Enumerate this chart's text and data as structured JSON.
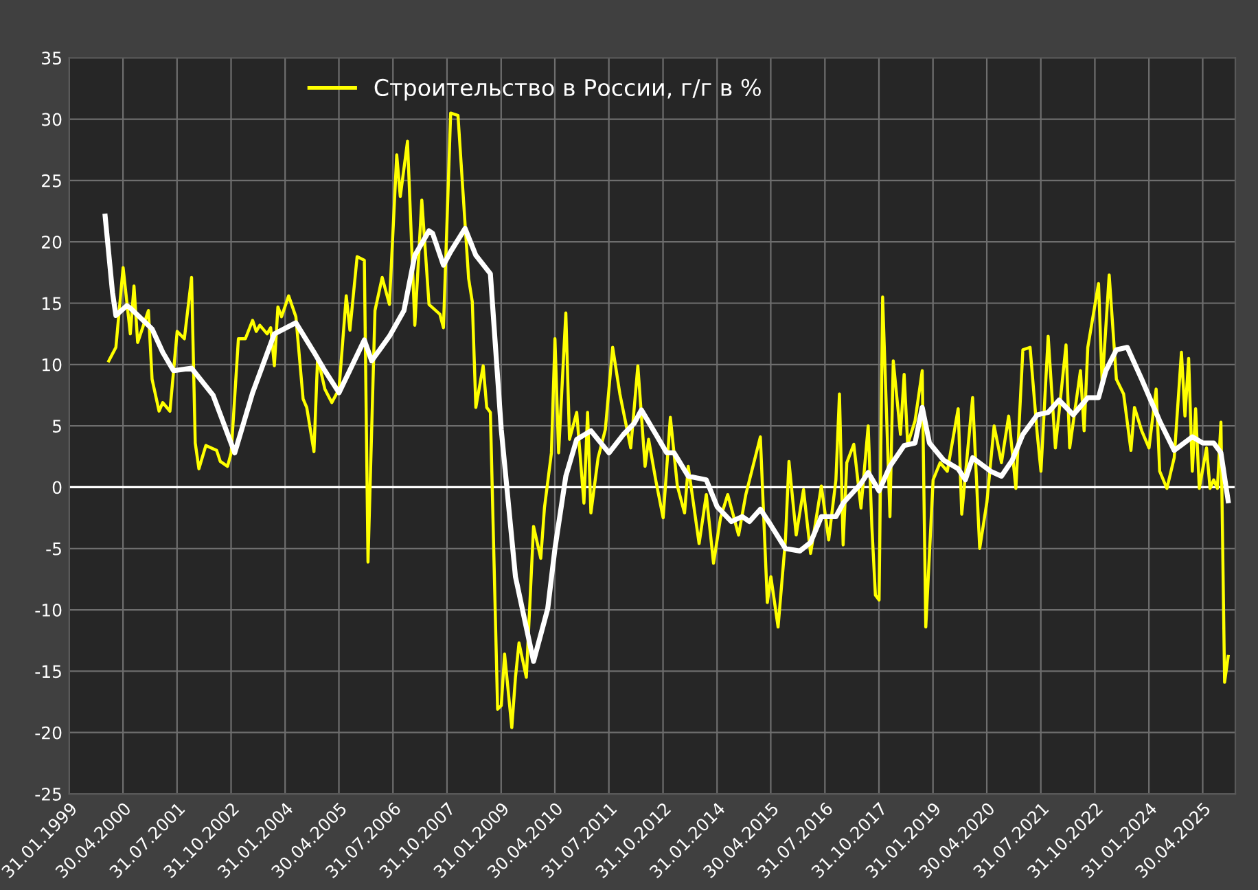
{
  "chart_data": {
    "type": "line",
    "legend": "top",
    "grid": true,
    "line_style": "solid",
    "marker": "none",
    "xlim": [
      "1999-01-31",
      "2026-01-31"
    ],
    "xticks": [
      {
        "value": "1999-01-31",
        "label": "31.01.1999"
      },
      {
        "value": "2000-04-30",
        "label": "30.04.2000"
      },
      {
        "value": "2001-07-31",
        "label": "31.07.2001"
      },
      {
        "value": "2002-10-31",
        "label": "31.10.2002"
      },
      {
        "value": "2004-01-31",
        "label": "31.01.2004"
      },
      {
        "value": "2005-04-30",
        "label": "30.04.2005"
      },
      {
        "value": "2006-07-31",
        "label": "31.07.2006"
      },
      {
        "value": "2007-10-31",
        "label": "31.10.2007"
      },
      {
        "value": "2009-01-31",
        "label": "31.01.2009"
      },
      {
        "value": "2010-04-30",
        "label": "30.04.2010"
      },
      {
        "value": "2011-07-31",
        "label": "31.07.2011"
      },
      {
        "value": "2012-10-31",
        "label": "31.10.2012"
      },
      {
        "value": "2014-01-31",
        "label": "31.01.2014"
      },
      {
        "value": "2015-04-30",
        "label": "30.04.2015"
      },
      {
        "value": "2016-07-31",
        "label": "31.07.2016"
      },
      {
        "value": "2017-10-31",
        "label": "31.10.2017"
      },
      {
        "value": "2019-01-31",
        "label": "31.01.2019"
      },
      {
        "value": "2020-04-30",
        "label": "30.04.2020"
      },
      {
        "value": "2021-07-31",
        "label": "31.07.2021"
      },
      {
        "value": "2022-10-31",
        "label": "31.10.2022"
      },
      {
        "value": "2024-01-31",
        "label": "31.01.2024"
      },
      {
        "value": "2025-04-30",
        "label": "30.04.2025"
      }
    ],
    "ylim": [
      -25,
      35
    ],
    "yticks": [
      -25,
      -20,
      -15,
      -10,
      -5,
      0,
      5,
      10,
      15,
      20,
      25,
      30,
      35
    ],
    "ref_lines": [
      {
        "axis": "y",
        "value": 0,
        "color": "#ffffff"
      }
    ],
    "series": [
      {
        "name": "Строительство в России, г/г в %",
        "color": "#ffff00",
        "x": [
          "2000-01",
          "2000-03",
          "2000-05",
          "2000-07",
          "2000-08",
          "2000-09",
          "2000-12",
          "2001-01",
          "2001-03",
          "2001-04",
          "2001-06",
          "2001-08",
          "2001-10",
          "2001-12",
          "2002-01",
          "2002-02",
          "2002-04",
          "2002-07",
          "2002-08",
          "2002-10",
          "2002-11",
          "2003-01",
          "2003-03",
          "2003-05",
          "2003-06",
          "2003-07",
          "2003-09",
          "2003-10",
          "2003-11",
          "2003-12",
          "2004-01",
          "2004-03",
          "2004-05",
          "2004-07",
          "2004-08",
          "2004-10",
          "2004-11",
          "2005-01",
          "2005-03",
          "2005-05",
          "2005-07",
          "2005-08",
          "2005-10",
          "2005-12",
          "2006-01",
          "2006-03",
          "2006-05",
          "2006-07",
          "2006-09",
          "2006-10",
          "2006-12",
          "2007-02",
          "2007-04",
          "2007-06",
          "2007-09",
          "2007-10",
          "2007-12",
          "2008-02",
          "2008-05",
          "2008-06",
          "2008-07",
          "2008-09",
          "2008-10",
          "2008-11",
          "2009-01",
          "2009-02",
          "2009-03",
          "2009-05",
          "2009-06",
          "2009-07",
          "2009-09",
          "2009-11",
          "2010-01",
          "2010-02",
          "2010-04",
          "2010-05",
          "2010-06",
          "2010-08",
          "2010-09",
          "2010-11",
          "2011-01",
          "2011-02",
          "2011-03",
          "2011-05",
          "2011-07",
          "2011-09",
          "2011-11",
          "2012-02",
          "2012-04",
          "2012-06",
          "2012-07",
          "2012-09",
          "2012-11",
          "2013-01",
          "2013-03",
          "2013-05",
          "2013-06",
          "2013-09",
          "2013-11",
          "2014-01",
          "2014-03",
          "2014-05",
          "2014-08",
          "2014-10",
          "2015-02",
          "2015-04",
          "2015-05",
          "2015-07",
          "2015-09",
          "2015-10",
          "2015-12",
          "2016-02",
          "2016-04",
          "2016-07",
          "2016-09",
          "2016-11",
          "2016-12",
          "2017-01",
          "2017-02",
          "2017-04",
          "2017-06",
          "2017-08",
          "2017-09",
          "2017-10",
          "2017-11",
          "2017-12",
          "2018-02",
          "2018-03",
          "2018-05",
          "2018-06",
          "2018-07",
          "2018-09",
          "2018-11",
          "2018-12",
          "2019-02",
          "2019-04",
          "2019-06",
          "2019-09",
          "2019-10",
          "2020-01",
          "2020-03",
          "2020-05",
          "2020-07",
          "2020-09",
          "2020-11",
          "2021-01",
          "2021-03",
          "2021-05",
          "2021-07",
          "2021-08",
          "2021-10",
          "2021-12",
          "2022-03",
          "2022-04",
          "2022-07",
          "2022-08",
          "2022-09",
          "2022-12",
          "2023-01",
          "2023-03",
          "2023-05",
          "2023-07",
          "2023-09",
          "2023-10",
          "2023-12",
          "2024-02",
          "2024-04",
          "2024-05",
          "2024-07",
          "2024-09",
          "2024-11",
          "2024-12",
          "2025-01",
          "2025-02",
          "2025-03",
          "2025-04",
          "2025-06",
          "2025-07",
          "2025-08",
          "2025-09",
          "2025-10",
          "2025-11",
          "2025-12"
        ],
        "values": [
          10.3,
          11.4,
          17.9,
          12.5,
          16.4,
          11.8,
          14.4,
          8.8,
          6.2,
          6.9,
          6.2,
          12.7,
          12.1,
          17.1,
          3.6,
          1.5,
          3.4,
          3.0,
          2.1,
          1.7,
          2.8,
          12.1,
          12.1,
          13.6,
          12.7,
          13.2,
          12.5,
          13.0,
          9.9,
          14.7,
          13.9,
          15.6,
          13.9,
          7.2,
          6.5,
          2.9,
          10.6,
          8.0,
          6.9,
          8.0,
          15.6,
          12.8,
          18.8,
          18.5,
          -6.1,
          14.4,
          17.1,
          14.9,
          27.1,
          23.7,
          28.2,
          13.2,
          23.4,
          14.9,
          14.1,
          13.0,
          30.5,
          30.3,
          17.0,
          15.1,
          6.5,
          9.9,
          6.5,
          6.1,
          -18.1,
          -17.8,
          -13.6,
          -19.6,
          -15.5,
          -12.7,
          -15.5,
          -3.2,
          -5.8,
          -1.7,
          2.8,
          12.1,
          2.8,
          14.2,
          3.9,
          6.1,
          -1.3,
          6.1,
          -2.1,
          2.4,
          4.7,
          11.4,
          7.6,
          3.2,
          9.9,
          1.7,
          3.9,
          0.5,
          -2.5,
          5.7,
          0.1,
          -2.1,
          1.7,
          -4.6,
          -0.6,
          -6.2,
          -2.5,
          -0.6,
          -3.9,
          -0.6,
          4.1,
          -9.4,
          -7.3,
          -11.4,
          -4.3,
          2.1,
          -3.9,
          -0.2,
          -5.4,
          0.1,
          -4.3,
          0.6,
          7.6,
          -4.7,
          2.0,
          3.5,
          -1.7,
          5.0,
          -3.2,
          -8.8,
          -9.2,
          15.5,
          -2.4,
          10.3,
          4.3,
          9.2,
          3.5,
          5.4,
          9.5,
          -11.4,
          0.6,
          2.0,
          1.3,
          6.4,
          -2.2,
          7.3,
          -5.0,
          -1.2,
          5.0,
          2.0,
          5.8,
          -0.1,
          11.2,
          11.4,
          4.3,
          1.3,
          12.3,
          3.2,
          11.6,
          3.2,
          9.5,
          4.6,
          11.4,
          16.6,
          8.4,
          17.3,
          8.8,
          7.6,
          3.0,
          6.5,
          4.6,
          3.2,
          8.0,
          1.3,
          -0.1,
          2.4,
          11.0,
          5.8,
          10.5,
          1.3,
          6.4,
          -0.1,
          3.2,
          -0.1,
          0.6,
          -0.1,
          5.3,
          -15.9,
          -13.8
        ]
      },
      {
        "color": "#ffffff",
        "x": [
          "1999-12",
          "2000-02",
          "2000-03",
          "2000-06",
          "2000-07",
          "2001-01",
          "2001-04",
          "2001-07",
          "2001-12",
          "2002-06",
          "2002-12",
          "2003-05",
          "2003-11",
          "2004-05",
          "2004-10",
          "2005-01",
          "2005-05",
          "2005-12",
          "2006-02",
          "2006-07",
          "2006-11",
          "2007-02",
          "2007-06",
          "2007-07",
          "2007-10",
          "2007-12",
          "2008-04",
          "2008-07",
          "2008-11",
          "2009-02",
          "2009-06",
          "2009-11",
          "2010-03",
          "2010-05",
          "2010-08",
          "2010-11",
          "2011-03",
          "2011-08",
          "2011-12",
          "2012-03",
          "2012-05",
          "2012-09",
          "2012-12",
          "2013-02",
          "2013-06",
          "2013-11",
          "2014-02",
          "2014-06",
          "2014-09",
          "2014-11",
          "2015-02",
          "2015-05",
          "2015-09",
          "2016-01",
          "2016-04",
          "2016-07",
          "2016-11",
          "2017-01",
          "2017-06",
          "2017-08",
          "2017-11",
          "2018-02",
          "2018-06",
          "2018-09",
          "2018-11",
          "2019-01",
          "2019-05",
          "2019-09",
          "2019-11",
          "2020-01",
          "2020-06",
          "2020-09",
          "2020-12",
          "2021-03",
          "2021-07",
          "2021-10",
          "2022-01",
          "2022-05",
          "2022-09",
          "2022-12",
          "2023-02",
          "2023-05",
          "2023-08",
          "2023-12",
          "2024-05",
          "2024-09",
          "2025-02",
          "2025-05",
          "2025-08",
          "2025-10",
          "2025-12"
        ],
        "values": [
          22.1,
          15.9,
          14.0,
          14.8,
          14.6,
          12.9,
          11.0,
          9.5,
          9.7,
          7.5,
          2.8,
          7.7,
          12.5,
          13.4,
          11.0,
          9.5,
          7.7,
          12.0,
          10.3,
          12.3,
          14.4,
          18.9,
          20.9,
          20.7,
          18.1,
          19.2,
          21.1,
          18.9,
          17.4,
          4.7,
          -7.3,
          -14.2,
          -9.9,
          -5.0,
          0.9,
          3.9,
          4.6,
          2.8,
          4.3,
          5.2,
          6.3,
          4.3,
          2.8,
          2.8,
          0.9,
          0.6,
          -1.6,
          -2.8,
          -2.4,
          -2.8,
          -1.8,
          -3.1,
          -5.0,
          -5.2,
          -4.5,
          -2.4,
          -2.4,
          -1.3,
          0.3,
          1.2,
          -0.3,
          1.7,
          3.4,
          3.6,
          6.5,
          3.6,
          2.2,
          1.5,
          0.6,
          2.4,
          1.3,
          0.9,
          2.2,
          4.3,
          5.9,
          6.1,
          7.1,
          5.9,
          7.3,
          7.3,
          9.5,
          11.2,
          11.4,
          8.8,
          5.4,
          3.0,
          4.1,
          3.6,
          3.6,
          2.8,
          -1.1
        ]
      }
    ]
  }
}
